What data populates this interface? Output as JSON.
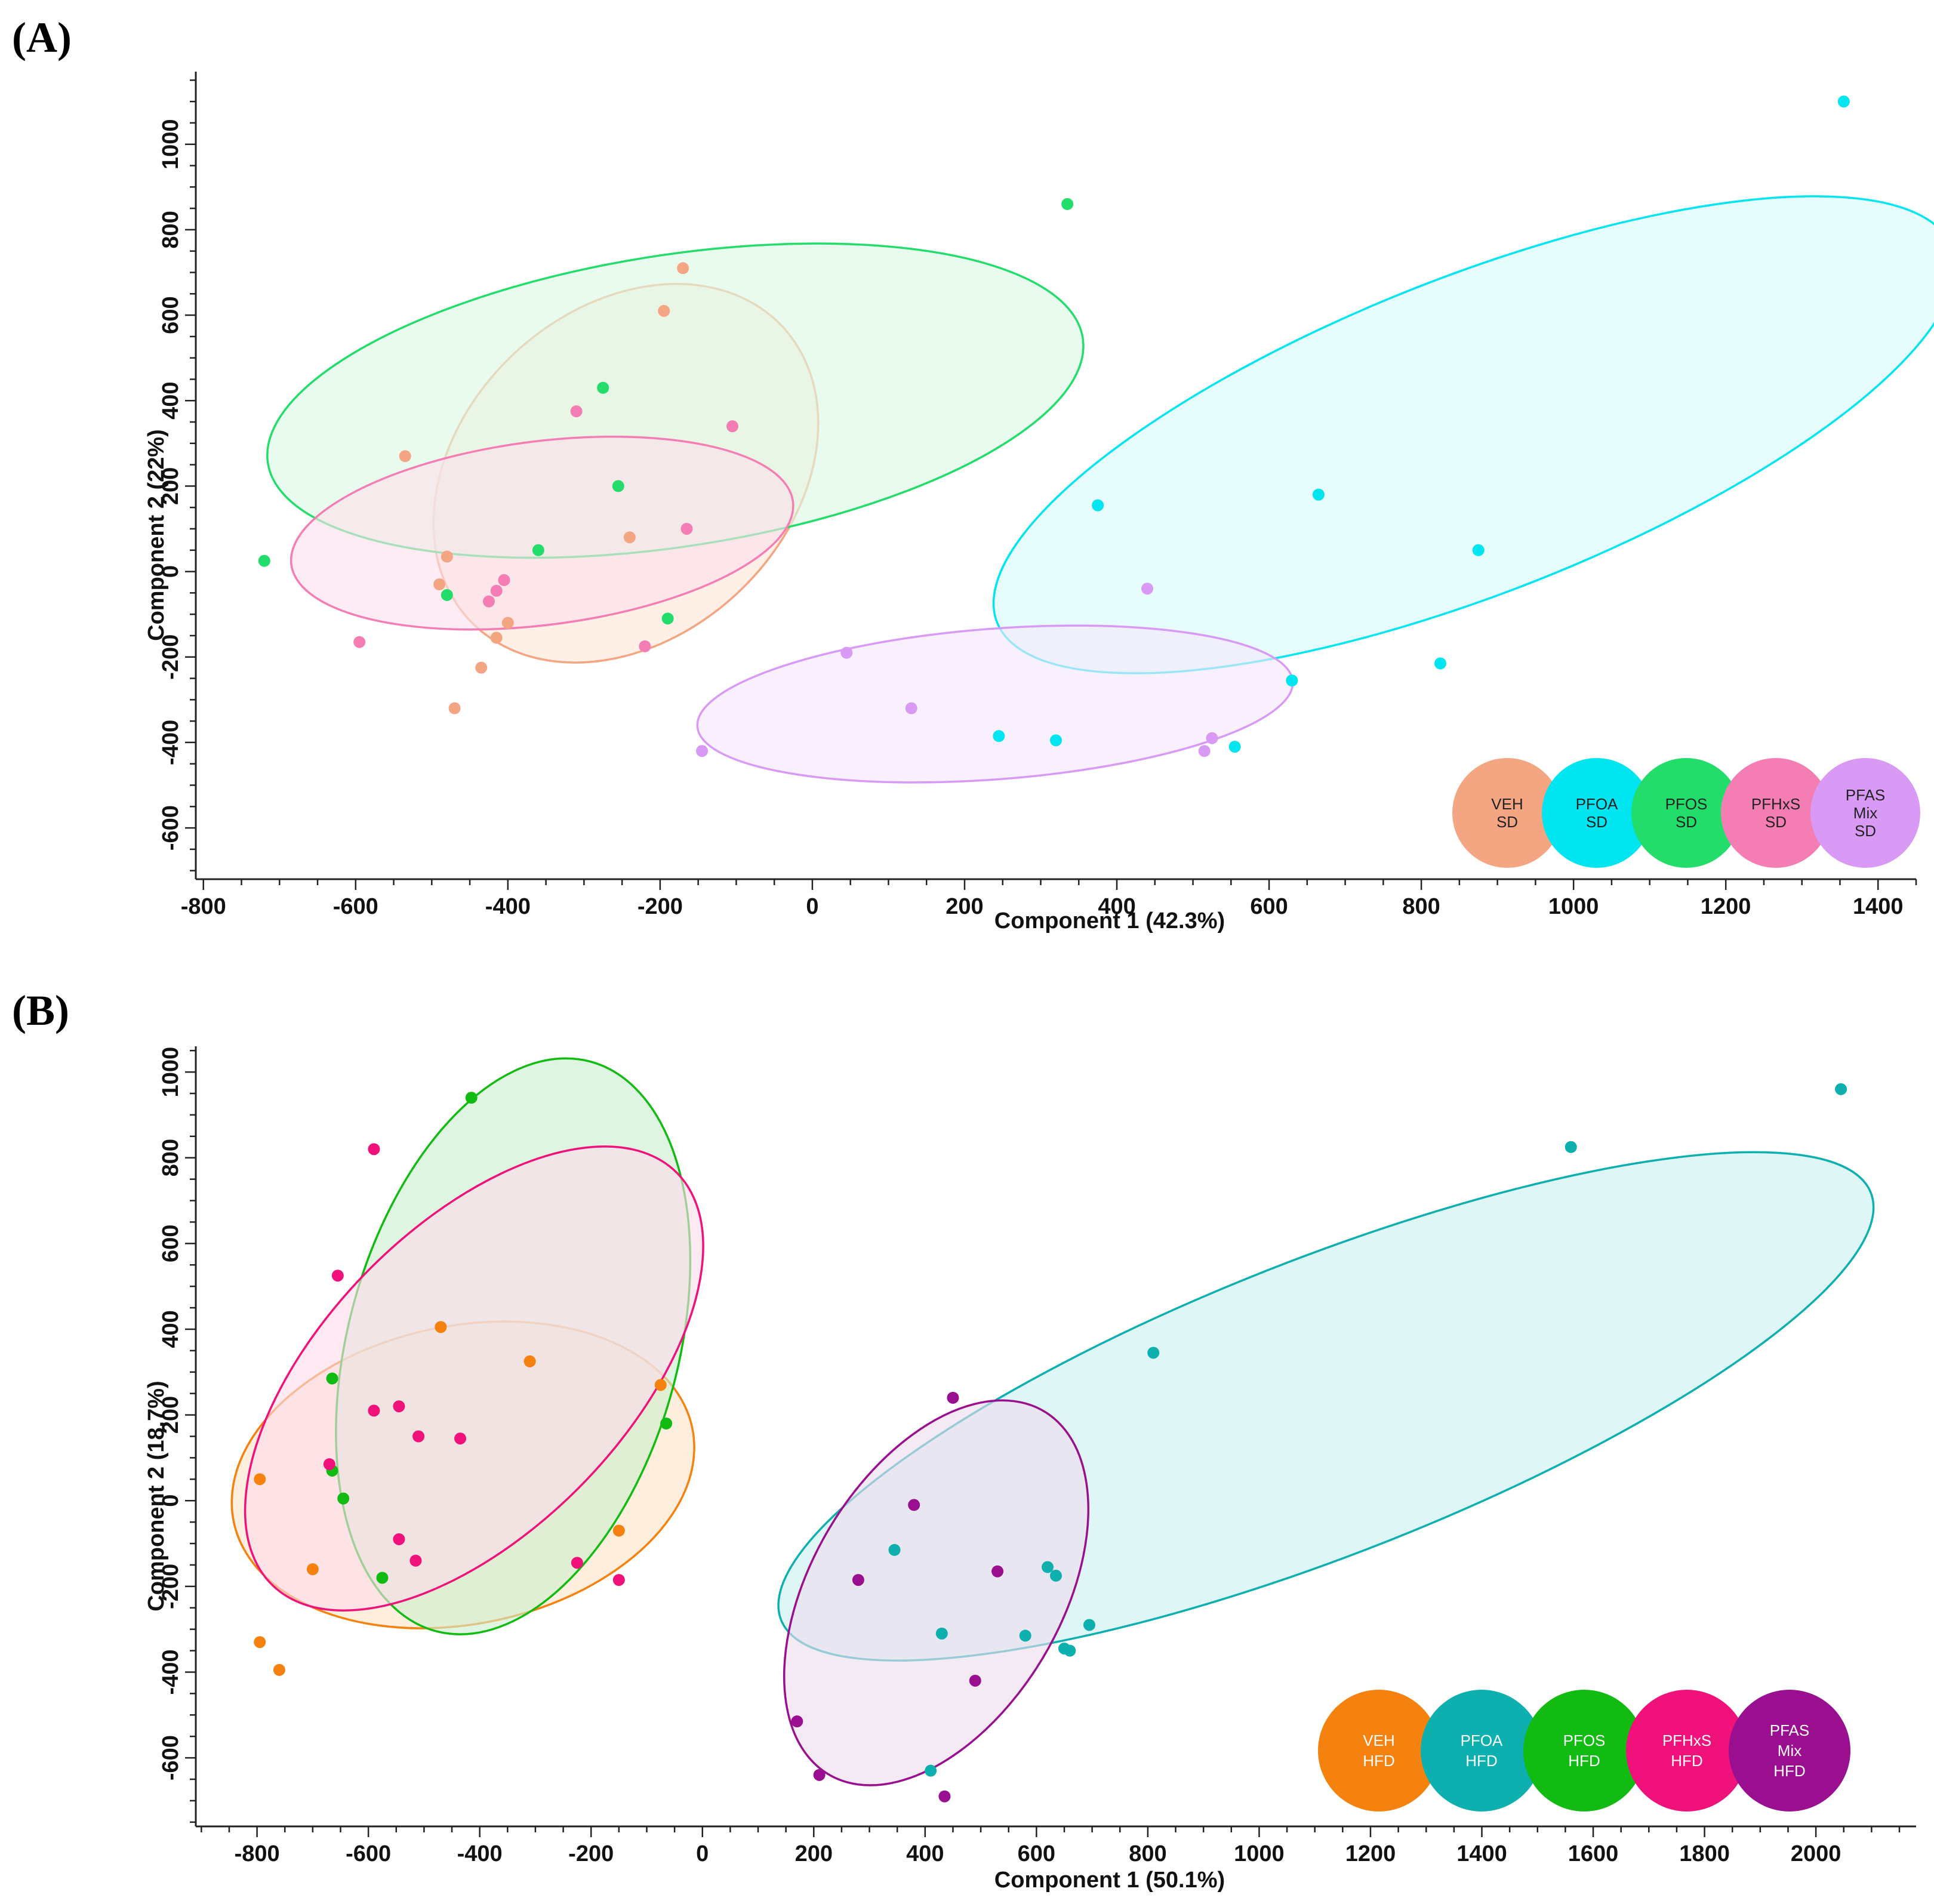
{
  "figure": {
    "panel_a_label": "(A)",
    "panel_b_label": "(B)"
  },
  "chart_data": [
    {
      "id": "A",
      "type": "scatter",
      "title": "",
      "xlabel": "Component 1 (42.3%)",
      "ylabel": "Component 2 (22%)",
      "xlim": [
        -810,
        1450
      ],
      "ylim": [
        -720,
        1170
      ],
      "xticks": [
        -800,
        -600,
        -400,
        -200,
        0,
        200,
        400,
        600,
        800,
        1000,
        1200,
        1400
      ],
      "yticks": [
        -600,
        -400,
        -200,
        0,
        200,
        400,
        600,
        800,
        1000
      ],
      "legend_position": "bottom-right",
      "series": [
        {
          "name": "VEH SD",
          "legend": [
            "VEH",
            "SD"
          ],
          "color": "#F4A582",
          "fill": "#FDE6D8",
          "text_color": "#222222",
          "points": [
            [
              -170,
              710
            ],
            [
              -195,
              610
            ],
            [
              -535,
              270
            ],
            [
              -240,
              80
            ],
            [
              -480,
              35
            ],
            [
              -490,
              -30
            ],
            [
              -400,
              -120
            ],
            [
              -415,
              -155
            ],
            [
              -435,
              -225
            ],
            [
              -470,
              -320
            ]
          ],
          "ellipse": {
            "cx": -245,
            "cy": 230,
            "rx": 450,
            "ry": 240,
            "angle": 78
          }
        },
        {
          "name": "PFOA SD",
          "legend": [
            "PFOA",
            "SD"
          ],
          "color": "#00E5F0",
          "fill": "#D9FAFC",
          "text_color": "#222222",
          "points": [
            [
              1355,
              1100
            ],
            [
              665,
              180
            ],
            [
              375,
              155
            ],
            [
              875,
              50
            ],
            [
              630,
              -255
            ],
            [
              825,
              -215
            ],
            [
              245,
              -385
            ],
            [
              320,
              -395
            ],
            [
              555,
              -410
            ]
          ],
          "ellipse": {
            "cx": 870,
            "cy": 320,
            "rx": 780,
            "ry": 320,
            "angle": 40
          }
        },
        {
          "name": "PFOS SD",
          "legend": [
            "PFOS",
            "SD"
          ],
          "color": "#22DD6A",
          "fill": "#DCF9E4",
          "text_color": "#222222",
          "points": [
            [
              335,
              860
            ],
            [
              -275,
              430
            ],
            [
              -255,
              200
            ],
            [
              -360,
              50
            ],
            [
              -720,
              25
            ],
            [
              -480,
              -55
            ],
            [
              -190,
              -110
            ]
          ],
          "ellipse": {
            "cx": -180,
            "cy": 400,
            "rx": 560,
            "ry": 330,
            "angle": 21
          }
        },
        {
          "name": "PFHxS SD",
          "legend": [
            "PFHxS",
            "SD"
          ],
          "color": "#F47EB4",
          "fill": "#FCE0EC",
          "text_color": "#222222",
          "points": [
            [
              -310,
              375
            ],
            [
              -105,
              340
            ],
            [
              -165,
              100
            ],
            [
              -405,
              -20
            ],
            [
              -415,
              -45
            ],
            [
              -425,
              -70
            ],
            [
              -595,
              -165
            ],
            [
              -220,
              -175
            ]
          ],
          "ellipse": {
            "cx": -355,
            "cy": 90,
            "rx": 340,
            "ry": 210,
            "angle": 18
          }
        },
        {
          "name": "PFAS Mix SD",
          "legend": [
            "PFAS",
            "Mix",
            "SD"
          ],
          "color": "#D89AF4",
          "fill": "#F5E6FC",
          "text_color": "#222222",
          "points": [
            [
              440,
              -40
            ],
            [
              45,
              -190
            ],
            [
              130,
              -320
            ],
            [
              -145,
              -420
            ],
            [
              525,
              -390
            ],
            [
              515,
              -420
            ]
          ],
          "ellipse": {
            "cx": 240,
            "cy": -310,
            "rx": 395,
            "ry": 175,
            "angle": 9
          }
        }
      ]
    },
    {
      "id": "B",
      "type": "scatter",
      "title": "",
      "xlabel": "Component 1 (50.1%)",
      "ylabel": "Component 2 (18.7%)",
      "xlim": [
        -910,
        2180
      ],
      "ylim": [
        -760,
        1060
      ],
      "xticks": [
        -800,
        -600,
        -400,
        -200,
        0,
        200,
        400,
        600,
        800,
        1000,
        1200,
        1400,
        1600,
        1800,
        2000
      ],
      "yticks": [
        -600,
        -400,
        -200,
        0,
        200,
        400,
        600,
        800,
        1000
      ],
      "legend_position": "bottom-right",
      "series": [
        {
          "name": "VEH HFD",
          "legend": [
            "VEH",
            "HFD"
          ],
          "color": "#F5820F",
          "fill": "#FDE3C8",
          "text_color": "#ffffff",
          "points": [
            [
              -470,
              405
            ],
            [
              -310,
              325
            ],
            [
              -75,
              270
            ],
            [
              -795,
              50
            ],
            [
              -700,
              -160
            ],
            [
              -150,
              -70
            ],
            [
              -795,
              -330
            ],
            [
              -760,
              -395
            ]
          ],
          "ellipse": {
            "cx": -430,
            "cy": 60,
            "rx": 430,
            "ry": 340,
            "angle": 25
          }
        },
        {
          "name": "PFOA HFD",
          "legend": [
            "PFOA",
            "HFD"
          ],
          "color": "#0DAFAF",
          "fill": "#CCF0F0",
          "text_color": "#ffffff",
          "points": [
            [
              2045,
              960
            ],
            [
              1560,
              825
            ],
            [
              810,
              345
            ],
            [
              345,
              -115
            ],
            [
              620,
              -155
            ],
            [
              635,
              -175
            ],
            [
              695,
              -290
            ],
            [
              430,
              -310
            ],
            [
              580,
              -315
            ],
            [
              650,
              -345
            ],
            [
              660,
              -350
            ],
            [
              410,
              -630
            ]
          ],
          "ellipse": {
            "cx": 1120,
            "cy": 220,
            "rx": 1100,
            "ry": 330,
            "angle": 28
          }
        },
        {
          "name": "PFOS HFD",
          "legend": [
            "PFOS",
            "HFD"
          ],
          "color": "#12BB12",
          "fill": "#CDEFCF",
          "text_color": "#ffffff",
          "points": [
            [
              -415,
              940
            ],
            [
              -665,
              285
            ],
            [
              -65,
              180
            ],
            [
              -665,
              70
            ],
            [
              -645,
              5
            ],
            [
              -575,
              -180
            ]
          ],
          "ellipse": {
            "cx": -340,
            "cy": 360,
            "rx": 680,
            "ry": 300,
            "angle": 80
          }
        },
        {
          "name": "PFHxS HFD",
          "legend": [
            "PFHxS",
            "HFD"
          ],
          "color": "#F0127A",
          "fill": "#FCDBEA",
          "text_color": "#ffffff",
          "points": [
            [
              -590,
              820
            ],
            [
              -655,
              525
            ],
            [
              -545,
              220
            ],
            [
              -590,
              210
            ],
            [
              -510,
              150
            ],
            [
              -435,
              145
            ],
            [
              -670,
              85
            ],
            [
              -545,
              -90
            ],
            [
              -515,
              -140
            ],
            [
              -225,
              -145
            ],
            [
              -150,
              -185
            ]
          ],
          "ellipse": {
            "cx": -410,
            "cy": 285,
            "rx": 610,
            "ry": 300,
            "angle": 58
          }
        },
        {
          "name": "PFAS Mix HFD",
          "legend": [
            "PFAS",
            "Mix",
            "HFD"
          ],
          "color": "#9A0F90",
          "fill": "#EEDDEE",
          "text_color": "#ffffff",
          "points": [
            [
              450,
              240
            ],
            [
              380,
              -10
            ],
            [
              530,
              -165
            ],
            [
              280,
              -185
            ],
            [
              490,
              -420
            ],
            [
              170,
              -515
            ],
            [
              210,
              -640
            ],
            [
              435,
              -690
            ]
          ],
          "ellipse": {
            "cx": 420,
            "cy": -215,
            "rx": 470,
            "ry": 235,
            "angle": 70
          }
        }
      ]
    }
  ]
}
